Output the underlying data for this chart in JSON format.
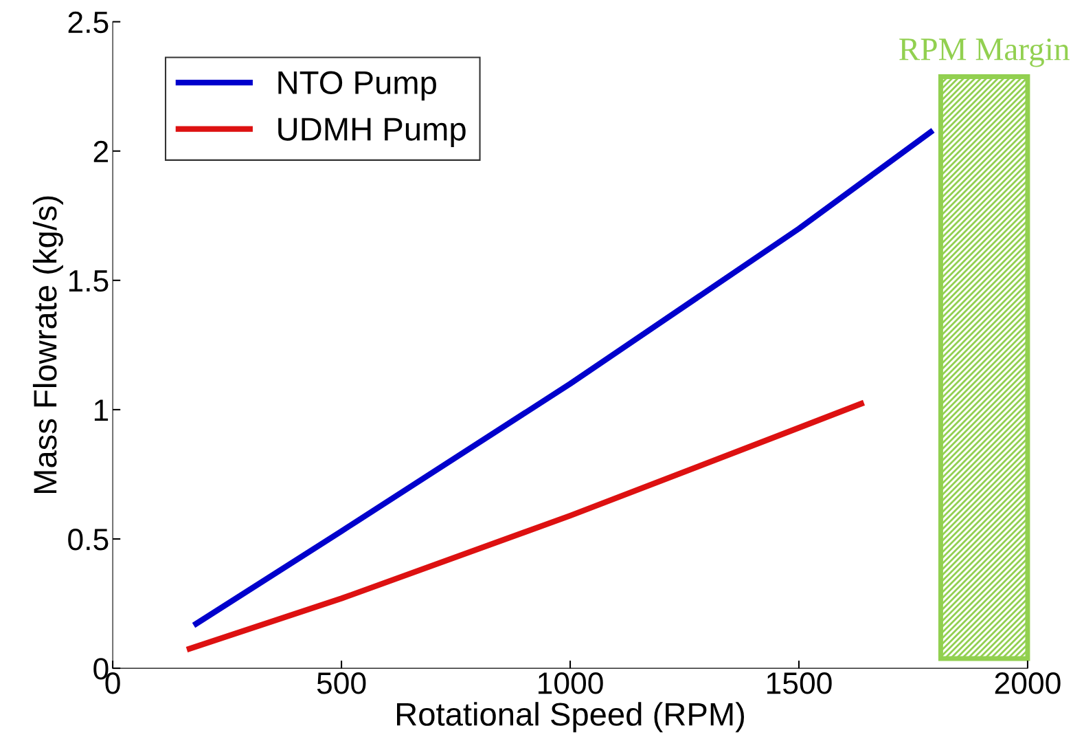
{
  "chart_data": {
    "type": "line",
    "xlabel": "Rotational Speed (RPM)",
    "ylabel": "Mass Flowrate (kg/s)",
    "x": [
      177,
      500,
      1000,
      1500,
      1793
    ],
    "series": [
      {
        "name": "NTO Pump",
        "color": "#0000cc",
        "values": [
          0.166,
          0.53,
          1.1,
          1.7,
          2.08
        ]
      },
      {
        "name": "UDMH Pump",
        "color": "#dd1111",
        "x": [
          162,
          500,
          1000,
          1500,
          1642
        ],
        "values": [
          0.072,
          0.27,
          0.59,
          0.93,
          1.027
        ]
      }
    ],
    "xlim": [
      0,
      2000
    ],
    "xticks": [
      0,
      500,
      1000,
      1500,
      2000
    ],
    "ylim": [
      0,
      2.5
    ],
    "yticks": [
      0,
      0.5,
      1,
      1.5,
      2,
      2.5
    ],
    "bands": [
      {
        "axis": "x",
        "from": 1810,
        "to": 2000,
        "label": "RPM Margin",
        "color": "#92d050"
      }
    ],
    "grid": false,
    "legend": "top left",
    "line_style": "solid",
    "marker": "none"
  }
}
